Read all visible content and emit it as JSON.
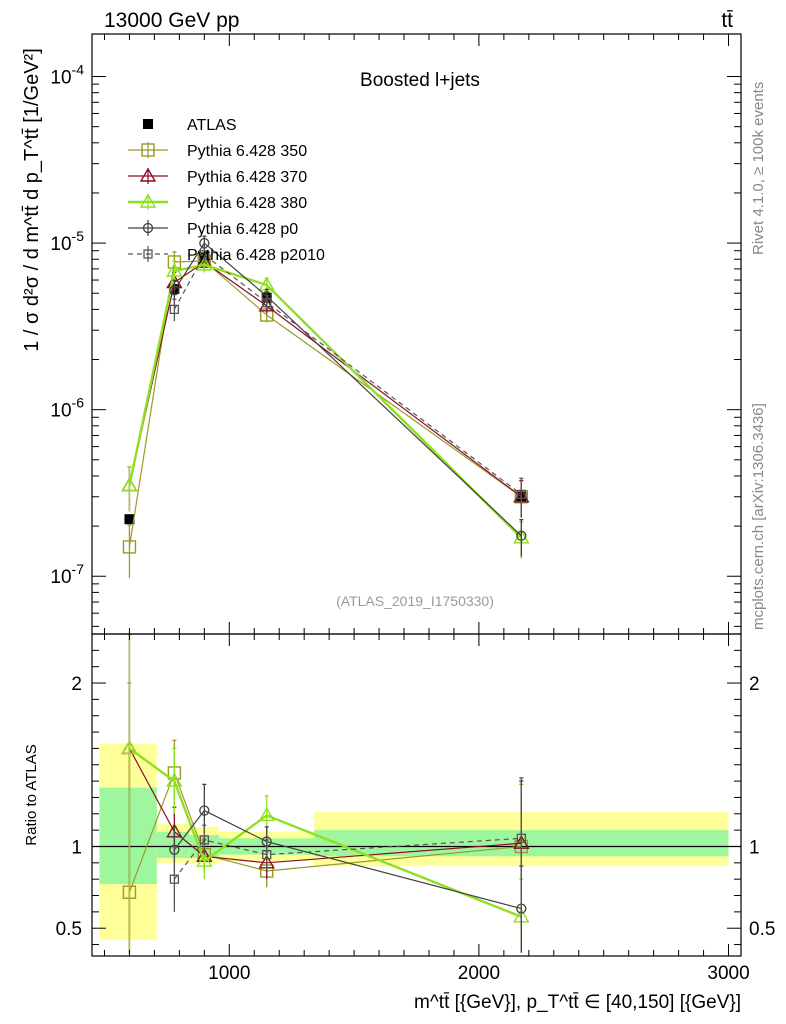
{
  "header": {
    "left_title": "13000 GeV pp",
    "right_title": "tt̄"
  },
  "side_text": {
    "rivet": "Rivet 4.1.0, ≥ 100k events",
    "mcplots": "mcplots.cern.ch [arXiv:1306.3436]"
  },
  "colors": {
    "atlas": "#000000",
    "p350": "#9a9a28",
    "p370": "#8b0e26",
    "p380": "#8ee020",
    "p0": "#404040",
    "p2010": "#555555",
    "band_inner": "#9ef79e",
    "band_outer": "#ffff99"
  },
  "chart_data": [
    {
      "type": "line",
      "panel": "main",
      "title": "Boosted l+jets",
      "watermark": "(ATLAS_2019_I1750330)",
      "ylabel": "1 / σ d²σ / d m^tt̄ d p_T^tt̄ [1/GeV²]",
      "yscale": "log",
      "ylim": [
        4.5e-08,
        0.00018
      ],
      "xlim": [
        450,
        3050
      ],
      "ytick_labels": [
        "10^-7",
        "10^-6",
        "10^-5",
        "10^-4"
      ],
      "legend_position": "upper-left",
      "series": [
        {
          "name": "ATLAS",
          "color_key": "atlas",
          "marker": "filled-square",
          "line": "none",
          "x": [
            600,
            780,
            900,
            1150,
            2170
          ],
          "y": [
            2.2e-07,
            5.3e-06,
            8.2e-06,
            4.7e-06,
            3e-07
          ],
          "yerr": [
            0,
            0,
            0,
            0,
            0
          ]
        },
        {
          "name": "Pythia 6.428 350",
          "color_key": "p350",
          "marker": "open-square",
          "line": "solid",
          "x": [
            600,
            780,
            900,
            1150,
            2170
          ],
          "y": [
            1.5e-07,
            7.7e-06,
            7.8e-06,
            3.7e-06,
            3e-07
          ],
          "yerr": [
            0.35,
            0.15,
            0.1,
            0.1,
            0.25
          ]
        },
        {
          "name": "Pythia 6.428 370",
          "color_key": "p370",
          "marker": "open-triangle",
          "line": "solid",
          "x": [
            600,
            780,
            900,
            1150,
            2170
          ],
          "y": [
            3.5e-07,
            5.8e-06,
            7.7e-06,
            4.2e-06,
            3e-07
          ],
          "yerr": [
            0.3,
            0.15,
            0.1,
            0.1,
            0.25
          ]
        },
        {
          "name": "Pythia 6.428 380",
          "color_key": "p380",
          "marker": "open-triangle",
          "line": "solid-thick",
          "x": [
            600,
            780,
            900,
            1150,
            2170
          ],
          "y": [
            3.5e-07,
            6.8e-06,
            7.4e-06,
            5.6e-06,
            1.7e-07
          ],
          "yerr": [
            0.3,
            0.15,
            0.1,
            0.1,
            0.25
          ]
        },
        {
          "name": "Pythia 6.428 p0",
          "color_key": "p0",
          "marker": "open-circle",
          "line": "solid",
          "x": [
            780,
            900,
            1150,
            2170
          ],
          "y": [
            5.2e-06,
            1e-05,
            4.8e-06,
            1.75e-07
          ],
          "yerr": [
            0.15,
            0.1,
            0.1,
            0.25
          ]
        },
        {
          "name": "Pythia 6.428 p2010",
          "color_key": "p2010",
          "marker": "open-square-small",
          "line": "dashed",
          "x": [
            780,
            900,
            1150,
            2170
          ],
          "y": [
            4e-06,
            8.5e-06,
            4.4e-06,
            3.1e-07
          ],
          "yerr": [
            0.15,
            0.1,
            0.1,
            0.25
          ]
        }
      ]
    },
    {
      "type": "line",
      "panel": "ratio",
      "ylabel": "Ratio to ATLAS",
      "ylim": [
        0.33,
        2.3
      ],
      "xlim": [
        450,
        3050
      ],
      "xlabel": "m^tt̄ [{GeV}], p_T^tt̄ ∈ [40,150] [{GeV}]",
      "xticks": [
        1000,
        2000,
        3000
      ],
      "xtick_labels": [
        "1000",
        "2000",
        "3000"
      ],
      "yticks": [
        0.5,
        1,
        2
      ],
      "ytick_labels": [
        "0.5",
        "1",
        "2"
      ],
      "bands": [
        {
          "x0": 480,
          "x1": 710,
          "inner": [
            0.77,
            1.36
          ],
          "outer": [
            0.43,
            1.63
          ]
        },
        {
          "x0": 710,
          "x1": 840,
          "inner": [
            0.93,
            1.09
          ],
          "outer": [
            0.9,
            1.14
          ]
        },
        {
          "x0": 840,
          "x1": 960,
          "inner": [
            0.93,
            1.07
          ],
          "outer": [
            0.9,
            1.12
          ]
        },
        {
          "x0": 960,
          "x1": 1340,
          "inner": [
            0.95,
            1.05
          ],
          "outer": [
            0.91,
            1.09
          ]
        },
        {
          "x0": 1340,
          "x1": 3000,
          "inner": [
            0.94,
            1.1
          ],
          "outer": [
            0.88,
            1.21
          ]
        }
      ],
      "series": [
        {
          "name": "Pythia 6.428 350",
          "color_key": "p350",
          "marker": "open-square",
          "line": "solid",
          "x": [
            600,
            780,
            900,
            1150,
            2170
          ],
          "y": [
            0.72,
            1.45,
            0.95,
            0.85,
            1.0
          ],
          "ylo": [
            0.35,
            1.26,
            0.87,
            0.75,
            0.5
          ],
          "yhi": [
            2.0,
            1.65,
            1.05,
            0.97,
            1.38
          ]
        },
        {
          "name": "Pythia 6.428 370",
          "color_key": "p370",
          "marker": "open-triangle",
          "line": "solid",
          "x": [
            600,
            780,
            900,
            1150,
            2170
          ],
          "y": [
            1.6,
            1.09,
            0.94,
            0.9,
            1.02
          ],
          "ylo": [
            0.35,
            0.95,
            0.85,
            0.8,
            0.5
          ],
          "yhi": [
            2.3,
            1.24,
            1.04,
            1.0,
            1.4
          ]
        },
        {
          "name": "Pythia 6.428 380",
          "color_key": "p380",
          "marker": "open-triangle",
          "line": "solid-thick",
          "x": [
            600,
            780,
            900,
            1150,
            2170
          ],
          "y": [
            1.6,
            1.4,
            0.91,
            1.19,
            0.57
          ],
          "ylo": [
            0.35,
            1.2,
            0.8,
            1.07,
            0.35
          ],
          "yhi": [
            2.3,
            1.6,
            1.02,
            1.31,
            0.8
          ]
        },
        {
          "name": "Pythia 6.428 p0",
          "color_key": "p0",
          "marker": "open-circle",
          "line": "solid",
          "x": [
            780,
            900,
            1150,
            2170
          ],
          "y": [
            0.98,
            1.22,
            1.03,
            0.62
          ],
          "ylo": [
            0.85,
            1.08,
            0.94,
            0.35
          ],
          "yhi": [
            1.12,
            1.38,
            1.12,
            0.88
          ]
        },
        {
          "name": "Pythia 6.428 p2010",
          "color_key": "p2010",
          "marker": "open-square-small",
          "line": "dashed",
          "x": [
            780,
            900,
            1150,
            2170
          ],
          "y": [
            0.8,
            1.04,
            0.95,
            1.05
          ],
          "ylo": [
            0.6,
            0.95,
            0.86,
            0.55
          ],
          "yhi": [
            1.0,
            1.13,
            1.04,
            1.42
          ]
        }
      ]
    }
  ]
}
